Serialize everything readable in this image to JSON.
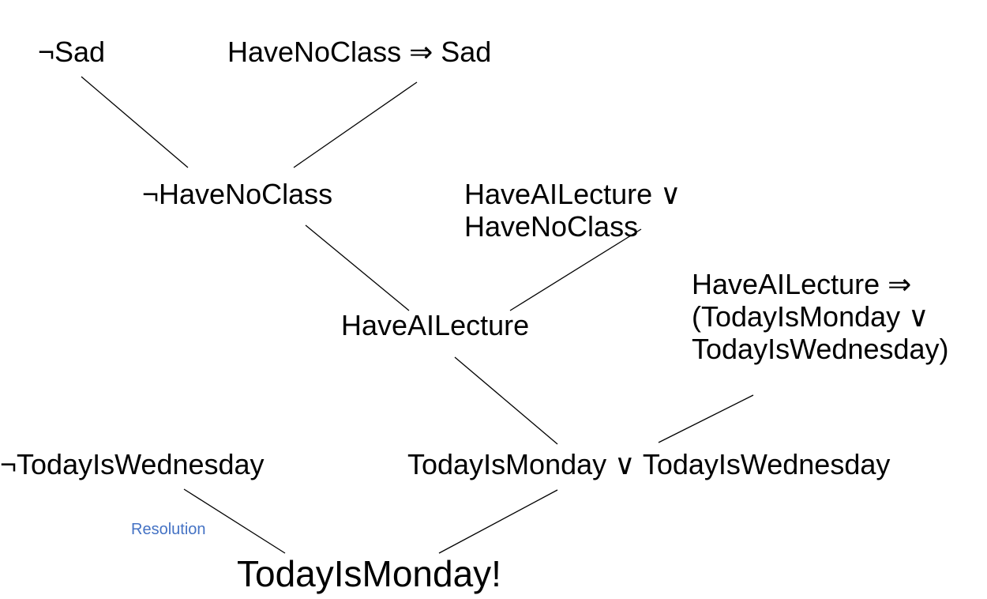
{
  "nodes": {
    "not_sad": "¬Sad",
    "havenoclass_implies_sad": "HaveNoClass ⇒ Sad",
    "not_havenoclass": "¬HaveNoClass",
    "haveailecture_or_havenoclass_line1": "HaveAILecture ∨",
    "haveailecture_or_havenoclass_line2": "HaveNoClass",
    "haveailecture": "HaveAILecture",
    "implication_line1": "HaveAILecture ⇒",
    "implication_line2": "(TodayIsMonday ∨",
    "implication_line3": "TodayIsWednesday)",
    "not_todayiswednesday": "¬TodayIsWednesday",
    "monday_or_wednesday": "TodayIsMonday ∨ TodayIsWednesday",
    "conclusion": "TodayIsMonday!"
  },
  "annotation": {
    "resolution_label": "Resolution",
    "color": "#4472C4"
  },
  "edge_color": "#000000"
}
